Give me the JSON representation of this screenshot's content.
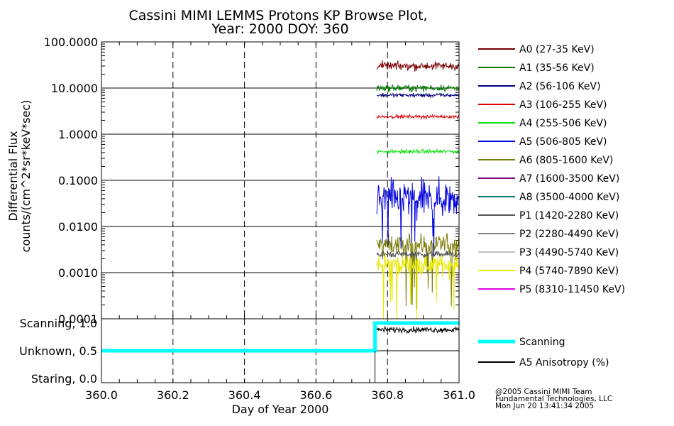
{
  "chart_data": {
    "type": "line",
    "title": "Cassini MIMI LEMMS Protons KP Browse Plot,",
    "subtitle": "Year: 2000 DOY: 360",
    "xlabel": "Day of Year 2000",
    "xlim": [
      360.0,
      361.0
    ],
    "xticks": [
      "360.0",
      "360.2",
      "360.4",
      "360.6",
      "360.8",
      "361.0"
    ],
    "top_panel": {
      "ylabel_line1": "Differential Flux",
      "ylabel_line2": "counts/(cm^2*sr*keV*sec)",
      "yscale": "log",
      "ylim": [
        0.0001,
        100
      ],
      "yticks": [
        "100.0000",
        "10.0000",
        "1.0000",
        "0.1000",
        "0.0100",
        "0.0010",
        "0.0001"
      ],
      "grid": true,
      "data_x_range": [
        360.77,
        361.0
      ],
      "series": [
        {
          "name": "A0 (27-35 KeV)",
          "color": "#7a0000",
          "level": 30,
          "noise": 0.25
        },
        {
          "name": "A1 (35-56 KeV)",
          "color": "#007a00",
          "level": 10,
          "noise": 0.2
        },
        {
          "name": "A2 (56-106 KeV)",
          "color": "#00007a",
          "level": 7,
          "noise": 0.12
        },
        {
          "name": "A3 (106-255 KeV)",
          "color": "#e00000",
          "level": 2.4,
          "noise": 0.1
        },
        {
          "name": "A4 (255-506 KeV)",
          "color": "#00e000",
          "level": 0.42,
          "noise": 0.12
        },
        {
          "name": "A5 (506-805 KeV)",
          "color": "#0000e0",
          "level": 0.04,
          "noise": 1.1
        },
        {
          "name": "A6 (805-1600 KeV)",
          "color": "#7a7a00",
          "level": 0.004,
          "noise": 0.6
        },
        {
          "name": "A7 (1600-3500 KeV)",
          "color": "#7a007a",
          "level": null,
          "noise": 0
        },
        {
          "name": "A8 (3500-4000 KeV)",
          "color": "#007a7a",
          "level": null,
          "noise": 0
        },
        {
          "name": "P1 (1420-2280 KeV)",
          "color": "#555555",
          "level": 0.0025,
          "noise": 0.2
        },
        {
          "name": "P2 (2280-4490 KeV)",
          "color": "#808080",
          "level": null,
          "noise": 0
        },
        {
          "name": "P3 (4490-5740 KeV)",
          "color": "#c0c0c0",
          "level": null,
          "noise": 0
        },
        {
          "name": "P4 (5740-7890 KeV)",
          "color": "#e8e800",
          "level": 0.0015,
          "noise": 0.6
        },
        {
          "name": "P5 (8310-11450 KeV)",
          "color": "#e000e0",
          "level": null,
          "noise": 0
        }
      ]
    },
    "bottom_panel": {
      "yticks": [
        "Scanning, 1.0",
        "Unknown, 0.5",
        "Staring, 0.0"
      ],
      "ylim": [
        0.0,
        1.0
      ],
      "series": [
        {
          "name": "Scanning",
          "color": "#00ffff",
          "x": [
            360.0,
            360.765,
            360.765,
            361.0
          ],
          "y": [
            0.5,
            0.5,
            1.0,
            1.0
          ]
        },
        {
          "name": "A5 Anisotropy (%)",
          "color": "#000000",
          "x_range": [
            360.77,
            361.0
          ],
          "level": 0.88,
          "noise": 0.05
        }
      ]
    }
  },
  "credits": {
    "line1": "@2005 Cassini MIMI Team",
    "line2": "Fundamental Technologies, LLC",
    "line3": "Mon Jun 20 13:41:34 2005"
  }
}
